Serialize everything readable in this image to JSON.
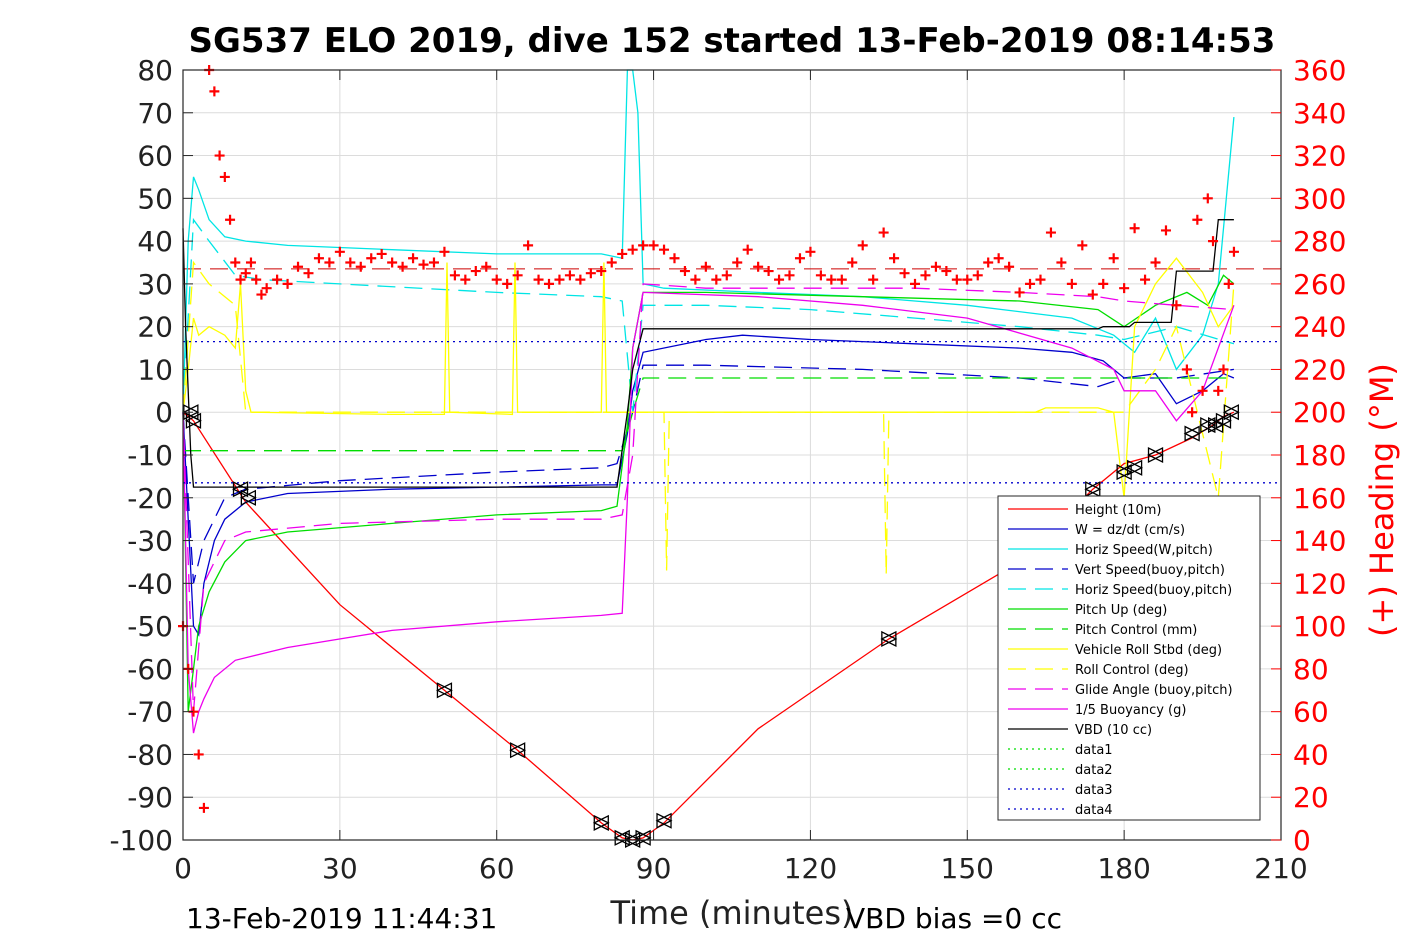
{
  "chart_data": {
    "type": "line",
    "title": "SG537 ELO 2019, dive 152 started 13-Feb-2019 08:14:53",
    "xlabel": "Time (minutes)",
    "ylabel": "",
    "y2label": "(+) Heading (°M)",
    "xlim": [
      0,
      210
    ],
    "ylim": [
      -100,
      80
    ],
    "y2lim": [
      0,
      360
    ],
    "xticks": [
      "0",
      "30",
      "60",
      "90",
      "120",
      "150",
      "180",
      "210"
    ],
    "yticks": [
      "80",
      "70",
      "60",
      "50",
      "40",
      "30",
      "20",
      "10",
      "0",
      "-10",
      "-20",
      "-30",
      "-40",
      "-50",
      "-60",
      "-70",
      "-80",
      "-90",
      "-100"
    ],
    "y2ticks": [
      "360",
      "340",
      "320",
      "300",
      "280",
      "260",
      "240",
      "220",
      "200",
      "180",
      "160",
      "140",
      "120",
      "100",
      "80",
      "60",
      "40",
      "20",
      "0"
    ],
    "grid": true,
    "legend_position": "bottom-right",
    "footer_left": "13-Feb-2019 11:44:31",
    "footer_right": "VBD bias =0 cc",
    "series": [
      {
        "name": "Height (10m)",
        "color": "#ff0000",
        "style": "solid",
        "x": [
          0,
          2,
          12,
          30,
          50,
          64,
          80,
          84,
          86,
          88,
          92,
          110,
          135,
          160,
          174,
          180,
          186,
          193,
          197,
          199,
          201
        ],
        "values": [
          0,
          -2,
          -21,
          -45,
          -65,
          -79,
          -96,
          -99.5,
          -100,
          -99.5,
          -96,
          -74,
          -53,
          -35,
          -18,
          -12,
          -10,
          -6,
          -3,
          -1,
          0
        ]
      },
      {
        "name": "W = dz/dt (cm/s)",
        "color": "#0000cc",
        "style": "solid",
        "x": [
          0,
          1,
          2,
          3,
          4,
          6,
          8,
          12,
          20,
          40,
          60,
          80,
          83,
          85,
          86,
          88,
          100,
          107,
          120,
          140,
          160,
          170,
          176,
          180,
          186,
          190,
          195,
          199,
          201
        ],
        "values": [
          0,
          -25,
          -50,
          -52,
          -40,
          -30,
          -25,
          -21,
          -19,
          -18,
          -17.5,
          -17,
          -17,
          -5,
          5,
          14,
          17,
          18,
          17,
          16,
          15,
          14,
          12,
          8,
          9,
          2,
          5,
          9,
          8
        ]
      },
      {
        "name": "Horiz Speed(W,pitch)",
        "color": "#00e5e5",
        "style": "solid",
        "x": [
          0,
          1,
          2,
          3,
          5,
          8,
          12,
          20,
          40,
          60,
          80,
          84,
          85,
          86,
          87,
          88,
          92,
          110,
          130,
          150,
          170,
          178,
          182,
          186,
          190,
          195,
          198,
          201
        ],
        "values": [
          0,
          40,
          55,
          52,
          45,
          41,
          40,
          39,
          38,
          37,
          37,
          36,
          80,
          80,
          70,
          30,
          29,
          28,
          27,
          25,
          22,
          18,
          14,
          22,
          10,
          18,
          30,
          69
        ]
      },
      {
        "name": "Vert Speed(buoy,pitch)",
        "color": "#0000cc",
        "style": "dashed",
        "x": [
          0,
          2,
          4,
          8,
          12,
          30,
          60,
          80,
          83,
          86,
          88,
          100,
          130,
          160,
          175,
          180,
          190,
          201
        ],
        "values": [
          0,
          -40,
          -30,
          -20,
          -18,
          -16,
          -14,
          -13,
          -12,
          0,
          11,
          11,
          10,
          8,
          6,
          8,
          8,
          10
        ]
      },
      {
        "name": "Horiz Speed(buoy,pitch)",
        "color": "#00e5e5",
        "style": "dashed",
        "x": [
          0,
          2,
          5,
          10,
          15,
          30,
          60,
          80,
          84,
          86,
          88,
          100,
          120,
          140,
          160,
          175,
          180,
          190,
          201
        ],
        "values": [
          0,
          45,
          40,
          32,
          31,
          30,
          28,
          27,
          26,
          0,
          25,
          25,
          24,
          22,
          20,
          18,
          17,
          20,
          16
        ]
      },
      {
        "name": "Pitch Up (deg)",
        "color": "#00dd00",
        "style": "solid",
        "x": [
          0,
          1,
          2,
          3,
          5,
          8,
          12,
          20,
          40,
          60,
          80,
          83,
          85,
          86,
          88,
          100,
          130,
          160,
          175,
          180,
          186,
          192,
          196,
          199,
          201
        ],
        "values": [
          0,
          -70,
          -60,
          -50,
          -42,
          -35,
          -30,
          -28,
          -26,
          -24,
          -23,
          -22,
          -3,
          15,
          28,
          28,
          27,
          26,
          24,
          20,
          25,
          28,
          25,
          32,
          30
        ]
      },
      {
        "name": "Pitch Control (mm)",
        "color": "#00dd00",
        "style": "dashed",
        "x": [
          0,
          2,
          3,
          84,
          86,
          88,
          180,
          201
        ],
        "values": [
          -9,
          -9,
          -9,
          -9,
          0,
          8,
          8,
          8
        ]
      },
      {
        "name": "Vehicle Roll Stbd (deg)",
        "color": "#ffff00",
        "style": "solid",
        "x": [
          0,
          1,
          2,
          3,
          5,
          8,
          10,
          11,
          12,
          13,
          40,
          50,
          50.5,
          51,
          63,
          63.5,
          64,
          80,
          80.5,
          81,
          84,
          86,
          88,
          100,
          160,
          163,
          165,
          175,
          178,
          180,
          182,
          186,
          190,
          195,
          198,
          201
        ],
        "values": [
          0,
          10,
          22,
          18,
          20,
          18,
          15,
          30,
          5,
          0,
          -0.5,
          -0.5,
          35,
          0,
          -0.5,
          35,
          0,
          0,
          35,
          0,
          0,
          0,
          0,
          0,
          0,
          0,
          1,
          1,
          0,
          -20,
          20,
          30,
          36,
          28,
          20,
          25
        ]
      },
      {
        "name": "Roll Control (deg)",
        "color": "#ffff00",
        "style": "dashed",
        "x": [
          0,
          2,
          5,
          10,
          12,
          84,
          86,
          92,
          92.5,
          93,
          134,
          134.5,
          135,
          160,
          175,
          180,
          186,
          190,
          198,
          201
        ],
        "values": [
          0,
          35,
          30,
          25,
          0,
          0,
          0,
          0,
          -37,
          0,
          0,
          -38,
          0,
          0,
          0,
          0,
          10,
          20,
          -20,
          30
        ]
      },
      {
        "name": "Glide Angle (buoy,pitch)",
        "color": "#ee00ee",
        "style": "dashed",
        "x": [
          0,
          2,
          4,
          8,
          12,
          30,
          60,
          80,
          84,
          86,
          88,
          100,
          120,
          140,
          160,
          175,
          180,
          190,
          201
        ],
        "values": [
          0,
          -70,
          -40,
          -30,
          -28,
          -26,
          -25,
          -25,
          -24,
          -10,
          30,
          29,
          29,
          29,
          28,
          27,
          26,
          25,
          24
        ]
      },
      {
        "name": "1/5 Buoyancy (g)",
        "color": "#ee00ee",
        "style": "solid",
        "x": [
          0,
          1,
          2,
          3,
          4,
          6,
          10,
          20,
          40,
          60,
          80,
          84,
          85,
          86,
          88,
          110,
          130,
          150,
          170,
          178,
          180,
          186,
          190,
          195,
          201
        ],
        "values": [
          0,
          -60,
          -75,
          -70,
          -67,
          -62,
          -58,
          -55,
          -51,
          -49,
          -47.5,
          -47,
          -20,
          15,
          28,
          27,
          25,
          22,
          15,
          10,
          5,
          5,
          -2,
          5,
          25
        ]
      },
      {
        "name": "VBD (10 cc)",
        "color": "#000000",
        "style": "solid",
        "x": [
          0,
          0.5,
          1.5,
          2,
          83,
          85,
          86,
          88,
          175,
          176,
          181,
          182,
          189,
          190,
          197,
          198,
          201
        ],
        "values": [
          43,
          20,
          -10,
          -17.5,
          -17.5,
          0,
          10,
          19.5,
          19.5,
          20,
          20,
          21,
          21,
          33,
          33,
          45,
          45
        ]
      },
      {
        "name": "data1",
        "color": "#00dd00",
        "style": "dotted",
        "x": [],
        "values": []
      },
      {
        "name": "data2",
        "color": "#00dd00",
        "style": "dotted",
        "x": [],
        "values": []
      },
      {
        "name": "data3",
        "color": "#0000cc",
        "style": "dotted",
        "x": [
          0,
          210
        ],
        "values": [
          16.5,
          16.5
        ]
      },
      {
        "name": "data4",
        "color": "#0000cc",
        "style": "dotted",
        "x": [
          0,
          210
        ],
        "values": [
          -16.5,
          -16.5
        ]
      }
    ],
    "reference_lines": [
      {
        "axis": "y2",
        "value": 267,
        "color": "#cc0000",
        "style": "dashed"
      }
    ],
    "heading": {
      "axis": "y2",
      "color": "#ff0000",
      "marker": "+",
      "x": [
        0,
        1,
        2,
        3,
        4,
        5,
        6,
        7,
        8,
        9,
        10,
        11,
        12,
        13,
        14,
        15,
        16,
        18,
        20,
        22,
        24,
        26,
        28,
        30,
        32,
        34,
        36,
        38,
        40,
        42,
        44,
        46,
        48,
        50,
        52,
        54,
        56,
        58,
        60,
        62,
        64,
        66,
        68,
        70,
        72,
        74,
        76,
        78,
        80,
        82,
        84,
        86,
        88,
        90,
        92,
        94,
        96,
        98,
        100,
        102,
        104,
        106,
        108,
        110,
        112,
        114,
        116,
        118,
        120,
        122,
        124,
        126,
        128,
        130,
        132,
        134,
        136,
        138,
        140,
        142,
        144,
        146,
        148,
        150,
        152,
        154,
        156,
        158,
        160,
        162,
        164,
        166,
        168,
        170,
        172,
        174,
        176,
        178,
        180,
        182,
        184,
        186,
        188,
        190,
        192,
        193,
        194,
        195,
        196,
        197,
        198,
        199,
        200,
        201
      ],
      "values": [
        100,
        80,
        60,
        40,
        15,
        360,
        350,
        320,
        310,
        290,
        270,
        262,
        265,
        270,
        262,
        255,
        258,
        262,
        260,
        268,
        265,
        272,
        270,
        275,
        270,
        268,
        272,
        274,
        270,
        268,
        272,
        269,
        270,
        275,
        264,
        262,
        266,
        268,
        262,
        260,
        264,
        278,
        262,
        260,
        262,
        264,
        262,
        265,
        266,
        270,
        274,
        276,
        278,
        278,
        276,
        272,
        266,
        262,
        268,
        262,
        264,
        270,
        276,
        268,
        266,
        262,
        264,
        272,
        275,
        264,
        262,
        262,
        270,
        278,
        262,
        284,
        272,
        265,
        260,
        264,
        268,
        266,
        262,
        262,
        264,
        270,
        272,
        268,
        256,
        260,
        262,
        284,
        270,
        260,
        278,
        255,
        260,
        272,
        258,
        286,
        262,
        270,
        285,
        250,
        220,
        200,
        290,
        210,
        300,
        280,
        210,
        220,
        260,
        275
      ]
    },
    "markers": [
      {
        "x": 1.5,
        "y": 0
      },
      {
        "x": 2,
        "y": -2
      },
      {
        "x": 11,
        "y": -18
      },
      {
        "x": 12.5,
        "y": -20
      },
      {
        "x": 50,
        "y": -65
      },
      {
        "x": 64,
        "y": -79
      },
      {
        "x": 80,
        "y": -96
      },
      {
        "x": 84,
        "y": -99.5
      },
      {
        "x": 86,
        "y": -100
      },
      {
        "x": 88,
        "y": -99.5
      },
      {
        "x": 92,
        "y": -95.5
      },
      {
        "x": 135,
        "y": -53
      },
      {
        "x": 174,
        "y": -18
      },
      {
        "x": 180,
        "y": -14
      },
      {
        "x": 182,
        "y": -13
      },
      {
        "x": 186,
        "y": -10
      },
      {
        "x": 193,
        "y": -5
      },
      {
        "x": 196,
        "y": -3
      },
      {
        "x": 197.5,
        "y": -3
      },
      {
        "x": 199,
        "y": -2
      },
      {
        "x": 200.5,
        "y": 0
      }
    ]
  }
}
